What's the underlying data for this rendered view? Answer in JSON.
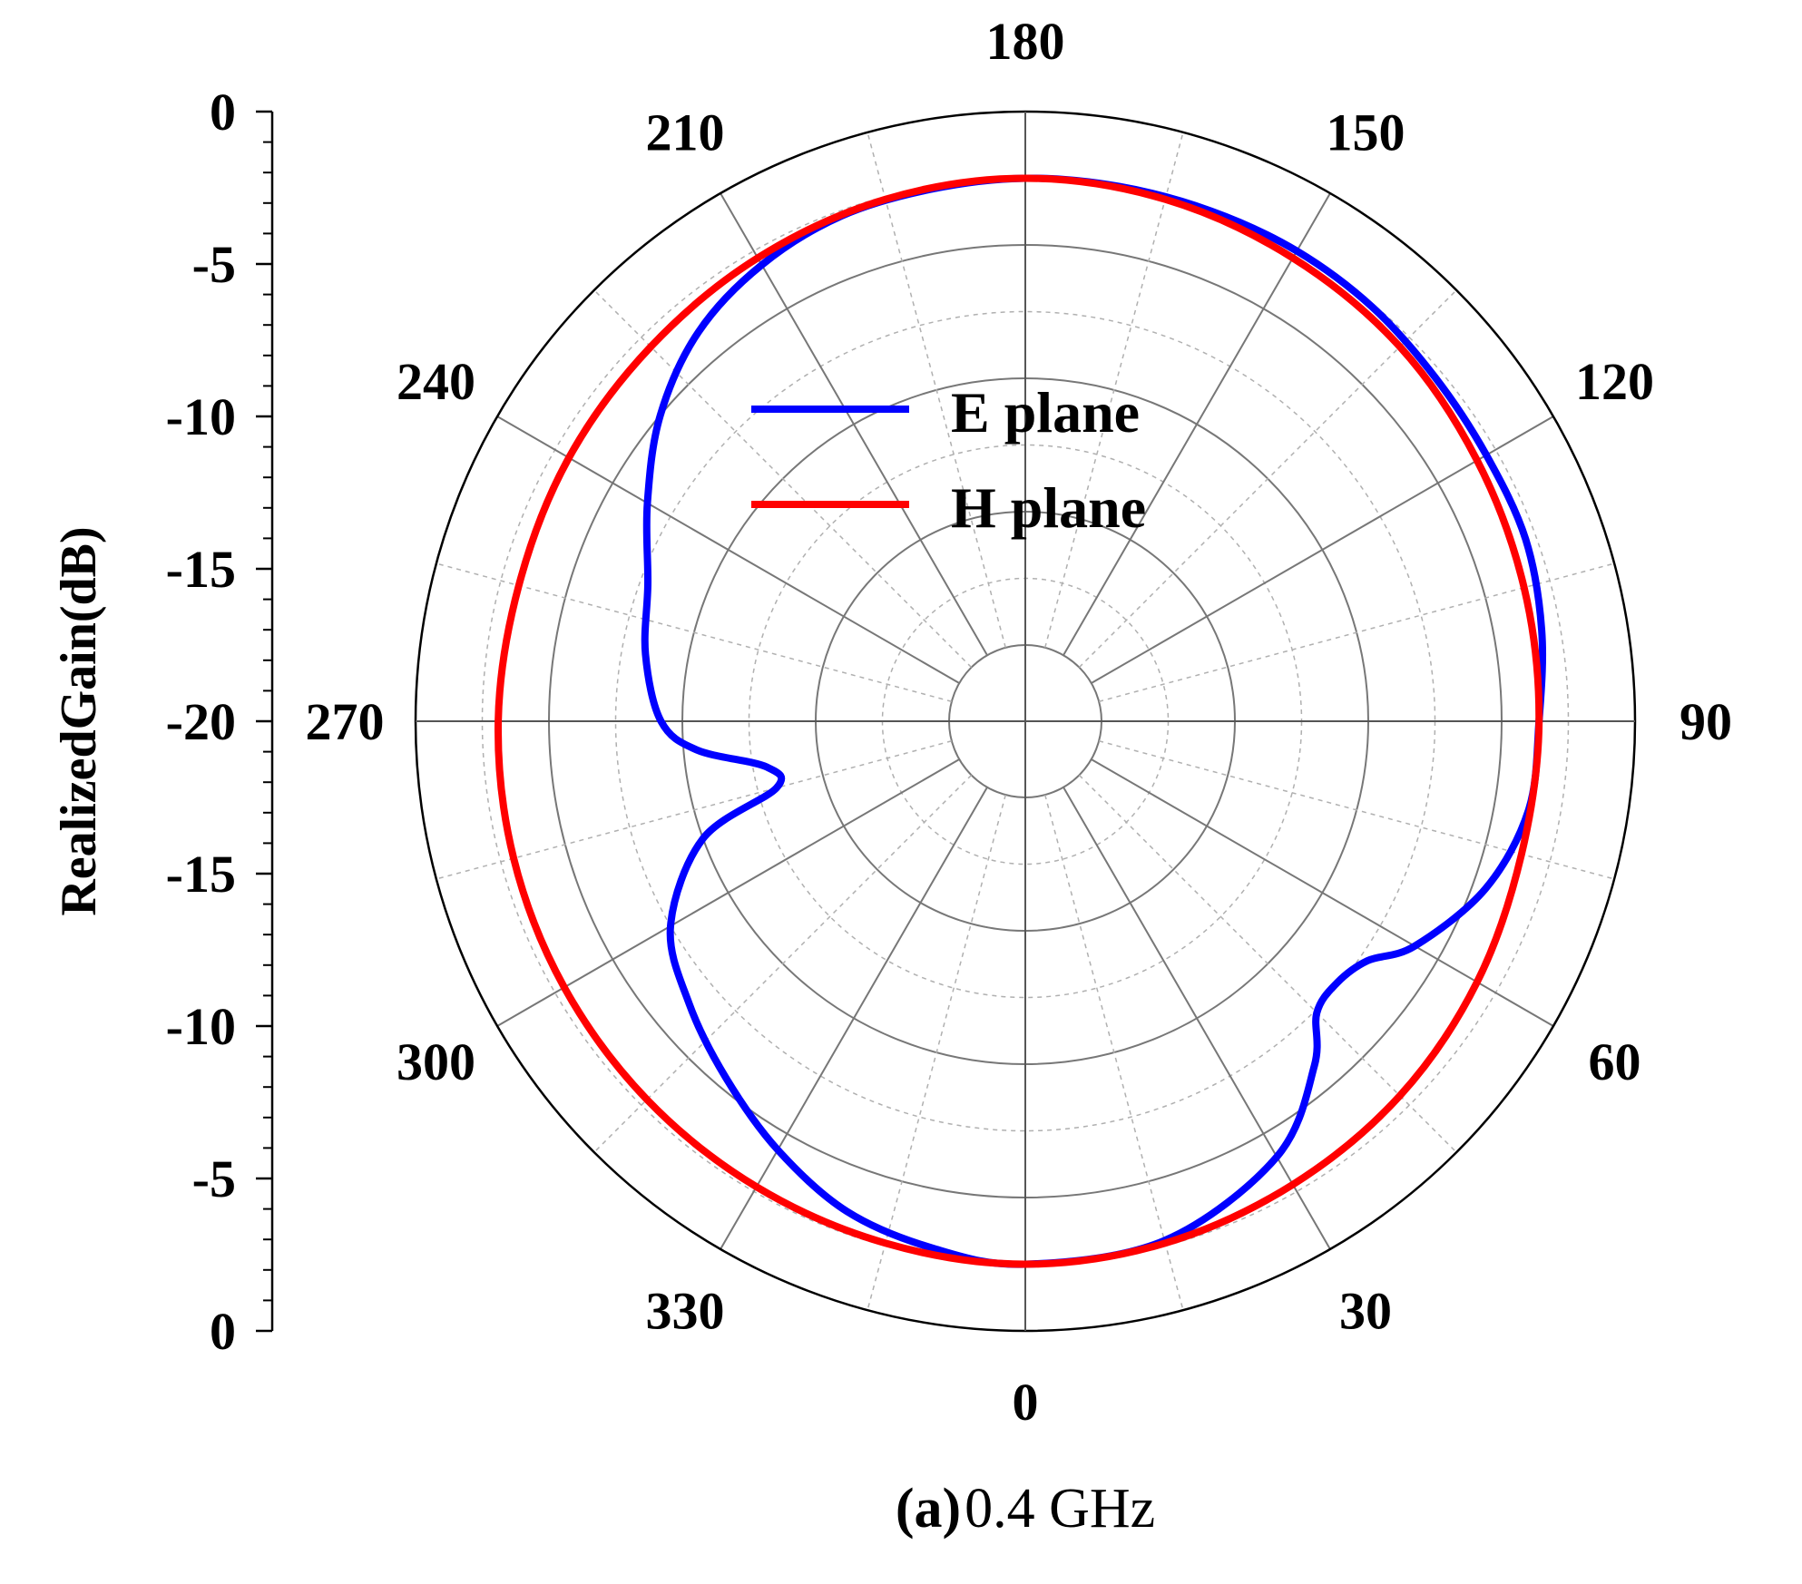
{
  "chart_data": {
    "type": "line",
    "projection": "polar",
    "angle_labels": [
      "0",
      "30",
      "60",
      "90",
      "120",
      "150",
      "180",
      "210",
      "240",
      "270",
      "300",
      "330"
    ],
    "angle_direction": "counter-clockwise, 0 at bottom",
    "radial_axis": {
      "label": "RealizedGain(dB)",
      "range": [
        -20,
        0
      ],
      "tick_labels": [
        "0",
        "-5",
        "-10",
        "-15",
        "-20",
        "-15",
        "-10",
        "-5",
        "0"
      ],
      "major_step": 5,
      "minor_step": 2.5
    },
    "grid": true,
    "legend_position": "center-upper",
    "series": [
      {
        "name": "E plane",
        "color": "#0000ff",
        "theta": [
          0,
          15,
          30,
          40,
          45,
          50,
          55,
          60,
          70,
          80,
          90,
          100,
          110,
          120,
          130,
          140,
          150,
          160,
          170,
          180,
          190,
          200,
          210,
          220,
          230,
          240,
          250,
          260,
          270,
          275,
          280,
          285,
          290,
          300,
          310,
          320,
          330,
          340,
          350
        ],
        "r": [
          -2.5,
          -2.7,
          -4.0,
          -6.0,
          -7.4,
          -7.6,
          -7.2,
          -6.0,
          -4.5,
          -3.7,
          -3.6,
          -3.2,
          -2.9,
          -2.9,
          -2.8,
          -2.6,
          -2.5,
          -2.5,
          -2.5,
          -2.5,
          -2.6,
          -2.7,
          -3.1,
          -3.8,
          -5.0,
          -6.5,
          -7.8,
          -8.4,
          -9.2,
          -10.5,
          -13.0,
          -13.2,
          -10.0,
          -7.5,
          -6.4,
          -5.4,
          -4.3,
          -3.3,
          -2.8
        ]
      },
      {
        "name": "H plane",
        "color": "#ff0000",
        "theta": [
          0,
          15,
          30,
          45,
          60,
          75,
          90,
          105,
          120,
          135,
          150,
          165,
          180,
          195,
          210,
          225,
          240,
          255,
          270,
          285,
          300,
          315,
          330,
          345
        ],
        "r": [
          -2.5,
          -2.6,
          -2.8,
          -3.0,
          -3.3,
          -3.6,
          -3.6,
          -3.5,
          -3.3,
          -3.0,
          -2.8,
          -2.6,
          -2.5,
          -2.6,
          -2.8,
          -3.0,
          -3.1,
          -3.2,
          -3.1,
          -3.0,
          -2.9,
          -2.8,
          -2.7,
          -2.6
        ]
      }
    ]
  },
  "caption": {
    "bold_part": "(a)",
    "text_part": "0.4 GHz"
  }
}
